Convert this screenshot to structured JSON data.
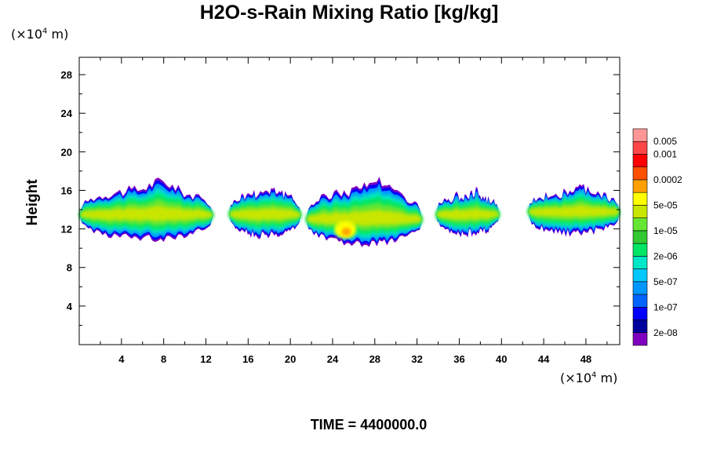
{
  "chart_data": {
    "type": "heatmap",
    "title": "H2O-s-Rain Mixing Ratio [kg/kg]",
    "ylabel": "Height",
    "x_unit": {
      "prefix": "(×10",
      "exp": "4",
      "suffix": " m)"
    },
    "y_unit": {
      "prefix": "(×10",
      "exp": "4",
      "suffix": " m)"
    },
    "xlim": [
      0,
      51.2
    ],
    "ylim": [
      0,
      29.8
    ],
    "x_ticks": [
      4,
      8,
      12,
      16,
      20,
      24,
      28,
      32,
      36,
      40,
      44,
      48
    ],
    "y_ticks": [
      4,
      8,
      12,
      16,
      20,
      24,
      28
    ],
    "time_label": "TIME = 4400000.0",
    "colorbar": {
      "colors": [
        "#7f00bf",
        "#00009f",
        "#0000ff",
        "#0064ff",
        "#0096ff",
        "#00c8ff",
        "#00e6c8",
        "#00e664",
        "#32c832",
        "#64e632",
        "#c8e600",
        "#ffff00",
        "#ffa000",
        "#ff5000",
        "#ff0000",
        "#ff4646",
        "#ff9696"
      ],
      "labels": [
        {
          "level": 1,
          "text": "2e-08"
        },
        {
          "level": 3,
          "text": "1e-07"
        },
        {
          "level": 5,
          "text": "5e-07"
        },
        {
          "level": 7,
          "text": "2e-06"
        },
        {
          "level": 9,
          "text": "1e-05"
        },
        {
          "level": 11,
          "text": "5e-05"
        },
        {
          "level": 13,
          "text": "0.0002"
        },
        {
          "level": 15,
          "text": "0.001"
        },
        {
          "level": 16,
          "text": "0.005"
        }
      ]
    },
    "cloud_segments": [
      {
        "x0": 0.0,
        "x1": 12.7,
        "base": 11.0,
        "top": 16.0,
        "peak": 17.0,
        "core": 13.5
      },
      {
        "x0": 14.2,
        "x1": 21.0,
        "base": 11.3,
        "top": 15.8,
        "peak": 16.2,
        "core": 13.5
      },
      {
        "x0": 21.5,
        "x1": 32.5,
        "base": 10.5,
        "top": 16.0,
        "peak": 17.2,
        "core": 13.0
      },
      {
        "x0": 33.8,
        "x1": 39.8,
        "base": 11.5,
        "top": 15.5,
        "peak": 15.9,
        "core": 13.5
      },
      {
        "x0": 42.5,
        "x1": 51.2,
        "base": 11.5,
        "top": 15.8,
        "peak": 16.2,
        "core": 13.8
      }
    ]
  }
}
